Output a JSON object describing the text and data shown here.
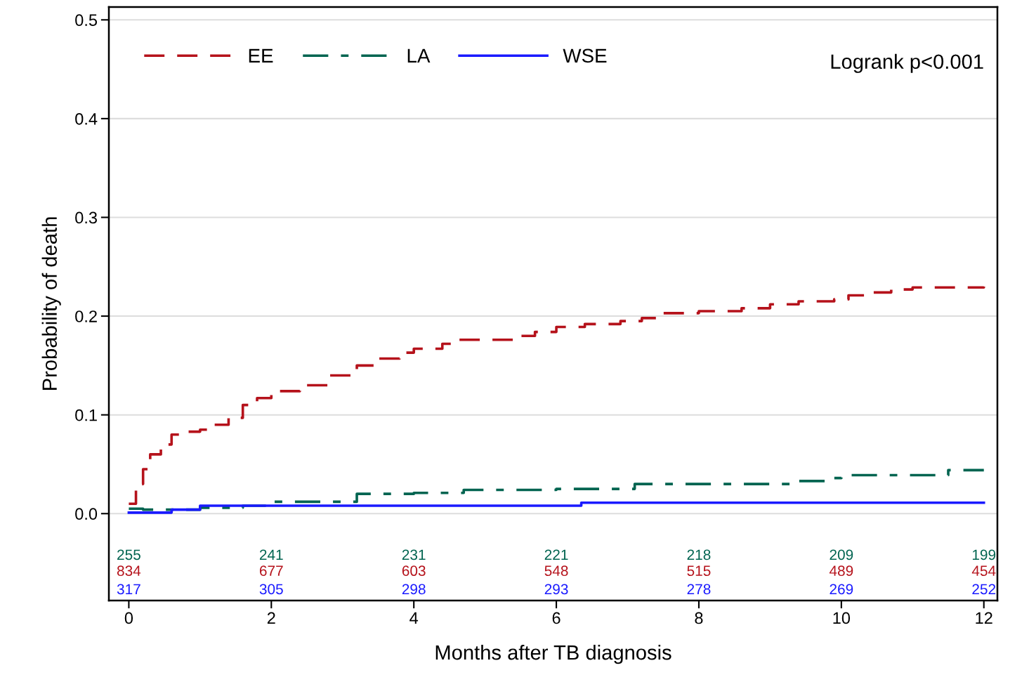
{
  "chart_data": {
    "type": "step",
    "xlabel": "Months after TB diagnosis",
    "ylabel": "Probability of death",
    "xlim": [
      -0.28,
      12.19
    ],
    "xticks": [
      0,
      2,
      4,
      6,
      8,
      10,
      12
    ],
    "ylim": [
      -0.088,
      0.513
    ],
    "yticks": [
      {
        "value": 0,
        "label": "0.0"
      },
      0.1,
      0.2,
      0.3,
      0.4,
      0.5
    ],
    "grid": "y",
    "legend": "top left",
    "series": [
      {
        "name": "EE",
        "color": "#b5121b",
        "line_style": "dashed",
        "x": [
          0,
          0.1,
          0.2,
          0.3,
          0.45,
          0.6,
          0.75,
          1.0,
          1.2,
          1.4,
          1.6,
          1.8,
          2.0,
          2.4,
          2.8,
          3.2,
          3.5,
          3.8,
          4.0,
          4.4,
          4.6,
          5.4,
          5.7,
          6.0,
          6.4,
          6.9,
          7.2,
          7.5,
          8.0,
          8.6,
          9.0,
          9.4,
          9.9,
          10.1,
          10.4,
          10.7,
          11.0,
          12.0
        ],
        "values": [
          0.01,
          0.03,
          0.045,
          0.06,
          0.07,
          0.08,
          0.083,
          0.085,
          0.09,
          0.097,
          0.11,
          0.117,
          0.124,
          0.13,
          0.14,
          0.15,
          0.157,
          0.163,
          0.167,
          0.172,
          0.176,
          0.18,
          0.184,
          0.189,
          0.192,
          0.195,
          0.198,
          0.203,
          0.205,
          0.208,
          0.212,
          0.215,
          0.217,
          0.221,
          0.224,
          0.227,
          0.229,
          0.23
        ]
      },
      {
        "name": "LA",
        "color": "#006450",
        "line_style": "dashdot",
        "x": [
          0,
          0.2,
          1.0,
          1.6,
          2.0,
          3.2,
          4.0,
          4.7,
          6.0,
          7.1,
          9.3,
          9.8,
          10.0,
          11.5,
          12.0
        ],
        "values": [
          0.005,
          0.004,
          0.006,
          0.008,
          0.012,
          0.02,
          0.021,
          0.024,
          0.025,
          0.03,
          0.033,
          0.036,
          0.039,
          0.044,
          0.044
        ]
      },
      {
        "name": "WSE",
        "color": "#1a1aff",
        "line_style": "solid",
        "x": [
          0,
          0.6,
          1.0,
          6.35,
          12.0
        ],
        "values": [
          0.001,
          0.004,
          0.008,
          0.011,
          0.011
        ]
      }
    ],
    "annotations": [
      "Logrank p<0.001",
      "255 241 231 221 218 209 199",
      "834 677 603 548 515 489 454",
      "317 305 298 293 278 269 252"
    ]
  }
}
